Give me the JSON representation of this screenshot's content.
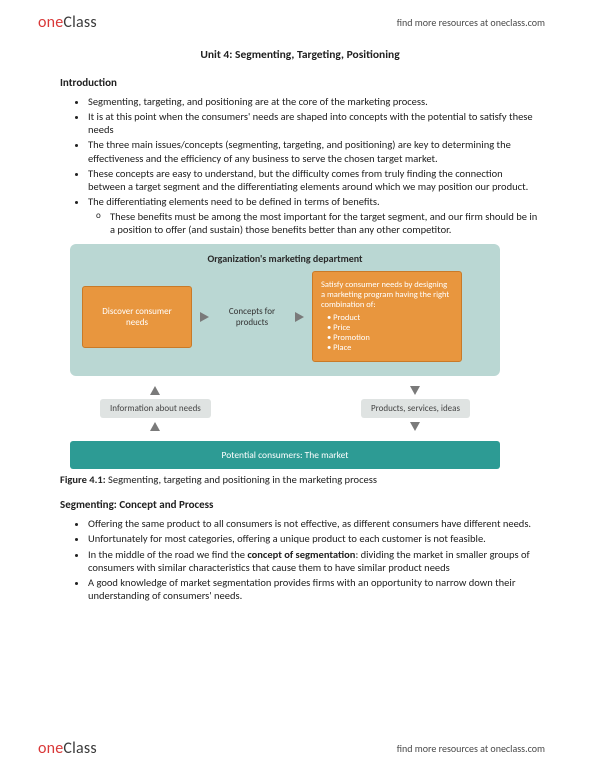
{
  "brand": {
    "one": "one",
    "class": "Class",
    "tagline": "find more resources at oneclass.com"
  },
  "title": "Unit 4: Segmenting, Targeting, Positioning",
  "intro_head": "Introduction",
  "intro": [
    "Segmenting, targeting, and positioning are at the core of the marketing process.",
    "It is at this point when the consumers' needs are shaped into concepts with the potential to satisfy these needs",
    "The three main issues/concepts (segmenting, targeting, and positioning) are key to determining the effectiveness and the efficiency of any business to serve the chosen target market.",
    "These concepts are easy to understand, but the difficulty comes from truly finding the connection between a target segment and the differentiating elements around which we may position our product.",
    "The differentiating elements need to be defined in terms of benefits."
  ],
  "intro_sub": [
    "These benefits must be among the most important for the target segment, and our firm should be in a position to offer (and sustain) those benefits better than any other competitor."
  ],
  "diagram": {
    "bg_top": "#bad7d3",
    "orange": "#e8963e",
    "teal": "#2d9b94",
    "gray": "#dfe3e2",
    "title": "Organization's marketing department",
    "discover": "Discover consumer needs",
    "concepts": "Concepts for products",
    "satisfy_head": "Satisfy consumer needs by designing a marketing program having the right combination of:",
    "satisfy_items": [
      "Product",
      "Price",
      "Promotion",
      "Place"
    ],
    "info_label": "Information about needs",
    "products_label": "Products, services, ideas",
    "market": "Potential consumers: The market"
  },
  "figcap_num": "Figure 4.1:",
  "figcap_text": " Segmenting, targeting and positioning in the marketing process",
  "seg_head": "Segmenting: Concept and Process",
  "seg": {
    "b1": "Offering the same product to all consumers is not effective, as different consumers have different needs.",
    "b2": "Unfortunately for most categories, offering a unique product to each customer is not feasible.",
    "b3a": "In the middle of the road we find the ",
    "b3bold": "concept of segmentation",
    "b3b": ": dividing the market in smaller groups of consumers with similar characteristics that cause them to have similar product needs",
    "b4": "A good knowledge of market segmentation provides firms with an opportunity to narrow down their understanding of consumers' needs."
  }
}
